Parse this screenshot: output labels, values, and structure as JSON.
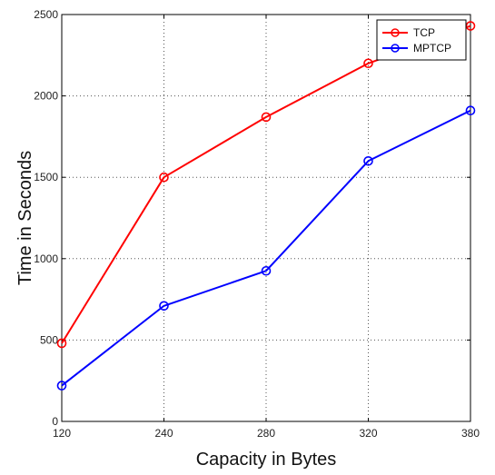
{
  "chart_data": {
    "type": "line",
    "x": [
      120,
      240,
      280,
      320,
      380
    ],
    "x_tick_labels": [
      "120",
      "240",
      "280",
      "320",
      "380"
    ],
    "y_ticks": [
      0,
      500,
      1000,
      1500,
      2000,
      2500
    ],
    "ylim": [
      0,
      2500
    ],
    "xlabel": "Capacity in Bytes",
    "ylabel": "Time in Seconds",
    "grid": true,
    "legend_position": "top-right",
    "series": [
      {
        "name": "TCP",
        "color": "#ff0000",
        "marker": "circle",
        "values": [
          480,
          1500,
          1870,
          2200,
          2430
        ]
      },
      {
        "name": "MPTCP",
        "color": "#0000ff",
        "marker": "circle",
        "values": [
          220,
          710,
          925,
          1600,
          1910
        ]
      }
    ]
  }
}
